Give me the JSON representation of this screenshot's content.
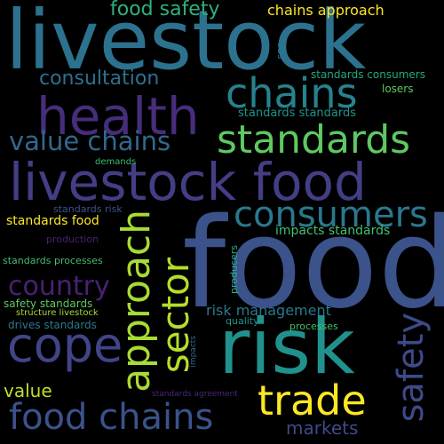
{
  "words": [
    {
      "text": "livestock",
      "color": "#2c728e"
    },
    {
      "text": "food",
      "color": "#3b528b"
    },
    {
      "text": "risk",
      "color": "#21918c"
    },
    {
      "text": "health",
      "color": "#472d7b"
    },
    {
      "text": "livestock food",
      "color": "#433e85"
    },
    {
      "text": "standards",
      "color": "#5ec962"
    },
    {
      "text": "chains",
      "color": "#26828e"
    },
    {
      "text": "consumers",
      "color": "#2a788e"
    },
    {
      "text": "value chains",
      "color": "#31688e"
    },
    {
      "text": "approach",
      "color": "#a8db34"
    },
    {
      "text": "sector",
      "color": "#b5de2b"
    },
    {
      "text": "cope",
      "color": "#414487"
    },
    {
      "text": "country",
      "color": "#482173"
    },
    {
      "text": "trade",
      "color": "#fde725"
    },
    {
      "text": "safety",
      "color": "#3e4a89"
    },
    {
      "text": "food chains",
      "color": "#3b528b"
    },
    {
      "text": "food safety",
      "color": "#2db27d"
    },
    {
      "text": "chains approach",
      "color": "#fde725"
    },
    {
      "text": "consultation",
      "color": "#2d708e"
    },
    {
      "text": "markets",
      "color": "#3e4a89"
    },
    {
      "text": "value",
      "color": "#c2df23"
    },
    {
      "text": "risk management",
      "color": "#2a788e"
    },
    {
      "text": "impacts standards",
      "color": "#44bf70"
    },
    {
      "text": "standards food",
      "color": "#fde725"
    },
    {
      "text": "standards consumers",
      "color": "#22a884"
    },
    {
      "text": "standards standards",
      "color": "#1f948c"
    },
    {
      "text": "losers",
      "color": "#5ec962"
    },
    {
      "text": "sps",
      "color": "#2a788e"
    },
    {
      "text": "demands",
      "color": "#3dbc74"
    },
    {
      "text": "standards risk",
      "color": "#3b528b"
    },
    {
      "text": "production",
      "color": "#482173"
    },
    {
      "text": "standards processes",
      "color": "#42be71"
    },
    {
      "text": "safety standards",
      "color": "#5ec962"
    },
    {
      "text": "structure livestock",
      "color": "#a5db36"
    },
    {
      "text": "drives standards",
      "color": "#2a788e"
    },
    {
      "text": "producers",
      "color": "#2ab07f"
    },
    {
      "text": "quality",
      "color": "#1f968b"
    },
    {
      "text": "processes",
      "color": "#44bf70"
    },
    {
      "text": "impacts",
      "color": "#31688e"
    },
    {
      "text": "standards agreement",
      "color": "#482878"
    }
  ]
}
